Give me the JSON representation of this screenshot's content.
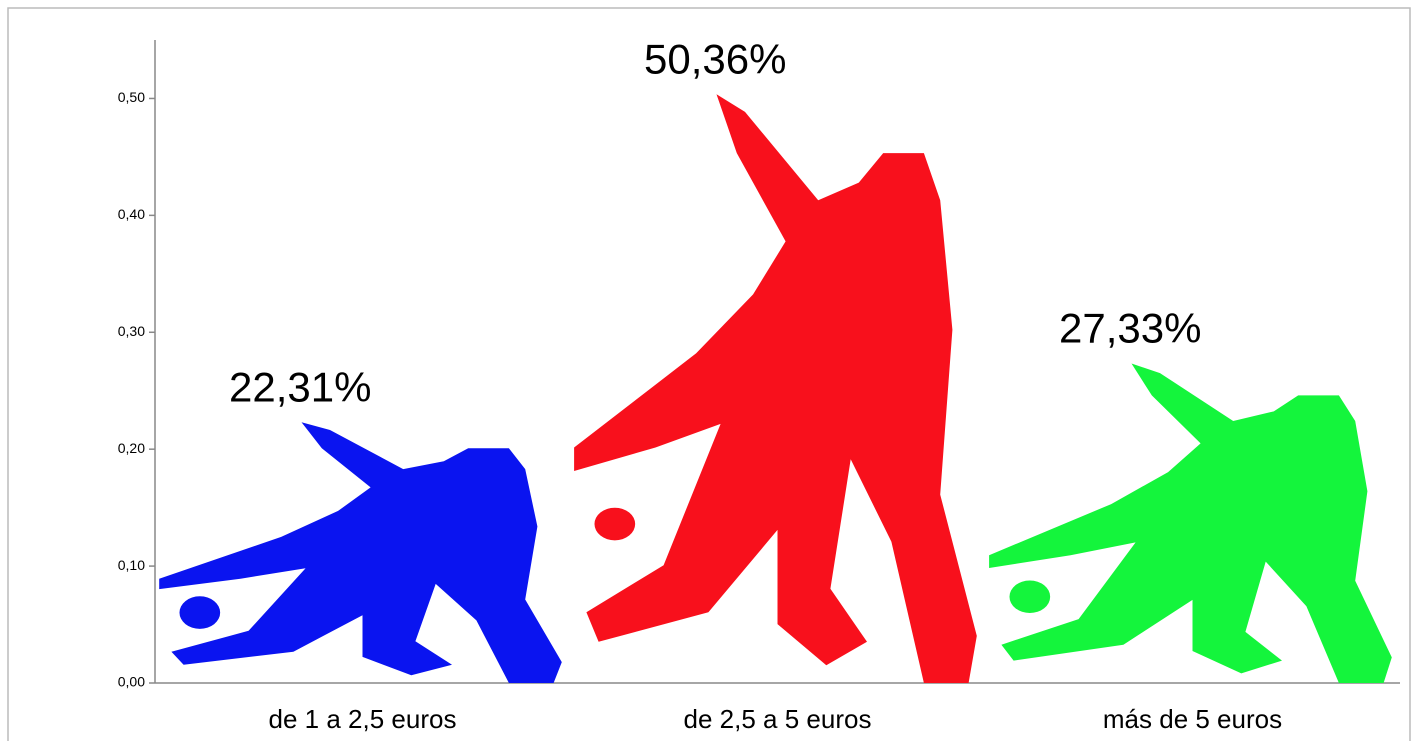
{
  "chart_data": {
    "type": "pictograph",
    "categories": [
      "de 1 a 2,5 euros",
      "de 2,5 a 5 euros",
      "más de 5 euros"
    ],
    "values": [
      0.2231,
      0.5036,
      0.2733
    ],
    "value_labels": [
      "22,31%",
      "50,36%",
      "27,33%"
    ],
    "colors": [
      "#0a14f0",
      "#f8101c",
      "#14f53c"
    ],
    "ylim": [
      0,
      0.55
    ],
    "yticks": [
      {
        "value": 0,
        "label": "0,00"
      },
      {
        "value": 0.1,
        "label": "0,10"
      },
      {
        "value": 0.2,
        "label": "0,20"
      },
      {
        "value": 0.3,
        "label": "0,30"
      },
      {
        "value": 0.4,
        "label": "0,40"
      },
      {
        "value": 0.5,
        "label": "0,50"
      }
    ]
  }
}
